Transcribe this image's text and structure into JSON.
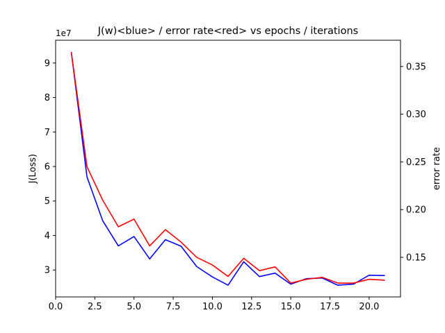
{
  "chart_data": {
    "type": "line",
    "title": "J(w)<blue> / error rate<red> vs epochs / iterations",
    "xlabel": "",
    "ylabel_left": "J(Loss)",
    "ylabel_right": "error rate",
    "left_axis_offset_label": "1e7",
    "xlim": [
      0.0,
      22.0
    ],
    "ylim_left": [
      2.22,
      9.66
    ],
    "ylim_right": [
      0.1085,
      0.3775
    ],
    "x_ticks": [
      0.0,
      2.5,
      5.0,
      7.5,
      10.0,
      12.5,
      15.0,
      17.5,
      20.0
    ],
    "x_tick_labels": [
      "0.0",
      "2.5",
      "5.0",
      "7.5",
      "10.0",
      "12.5",
      "15.0",
      "17.5",
      "20.0"
    ],
    "y_left_ticks": [
      3,
      4,
      5,
      6,
      7,
      8,
      9
    ],
    "y_left_tick_labels": [
      "3",
      "4",
      "5",
      "6",
      "7",
      "8",
      "9"
    ],
    "y_right_ticks": [
      0.15,
      0.2,
      0.25,
      0.3,
      0.35
    ],
    "y_right_tick_labels": [
      "0.15",
      "0.20",
      "0.25",
      "0.30",
      "0.35"
    ],
    "grid": false,
    "x": [
      1,
      2,
      3,
      4,
      5,
      6,
      7,
      8,
      9,
      10,
      11,
      12,
      13,
      14,
      15,
      16,
      17,
      18,
      19,
      20,
      21
    ],
    "series": [
      {
        "axis": "left",
        "color": "#0000ff",
        "values": [
          9.32,
          5.7,
          4.43,
          3.7,
          3.97,
          3.32,
          3.88,
          3.69,
          3.1,
          2.8,
          2.56,
          3.24,
          2.81,
          2.91,
          2.59,
          2.75,
          2.77,
          2.56,
          2.59,
          2.85,
          2.84
        ]
      },
      {
        "axis": "right",
        "color": "#ff0000",
        "values": [
          0.365,
          0.245,
          0.21,
          0.182,
          0.19,
          0.162,
          0.179,
          0.166,
          0.15,
          0.142,
          0.13,
          0.149,
          0.136,
          0.14,
          0.123,
          0.127,
          0.129,
          0.123,
          0.123,
          0.127,
          0.126
        ]
      }
    ]
  }
}
